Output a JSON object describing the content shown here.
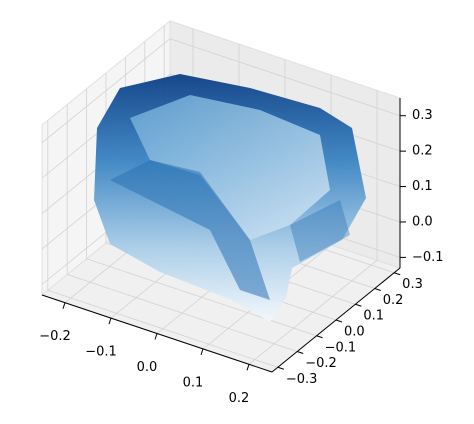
{
  "chart_data": {
    "type": "scatter3d",
    "colormap": "Blues",
    "xlim": [
      -0.25,
      0.25
    ],
    "ylim": [
      -0.33,
      0.33
    ],
    "zlim": [
      -0.13,
      0.35
    ],
    "xticks": [
      {
        "value": -0.2,
        "label": "−0.2"
      },
      {
        "value": -0.1,
        "label": "−0.1"
      },
      {
        "value": 0,
        "label": "0.0"
      },
      {
        "value": 0.1,
        "label": "0.1"
      },
      {
        "value": 0.2,
        "label": "0.2"
      }
    ],
    "yticks": [
      {
        "value": -0.3,
        "label": "−0.3"
      },
      {
        "value": -0.2,
        "label": "−0.2"
      },
      {
        "value": -0.1,
        "label": "−0.1"
      },
      {
        "value": 0,
        "label": "0.0"
      },
      {
        "value": 0.1,
        "label": "0.1"
      },
      {
        "value": 0.2,
        "label": "0.2"
      },
      {
        "value": 0.3,
        "label": "0.3"
      }
    ],
    "zticks": [
      {
        "value": -0.1,
        "label": "−0.1"
      },
      {
        "value": 0,
        "label": "0.0"
      },
      {
        "value": 0.1,
        "label": "0.1"
      },
      {
        "value": 0.2,
        "label": "0.2"
      },
      {
        "value": 0.3,
        "label": "0.3"
      }
    ],
    "grid": true
  }
}
